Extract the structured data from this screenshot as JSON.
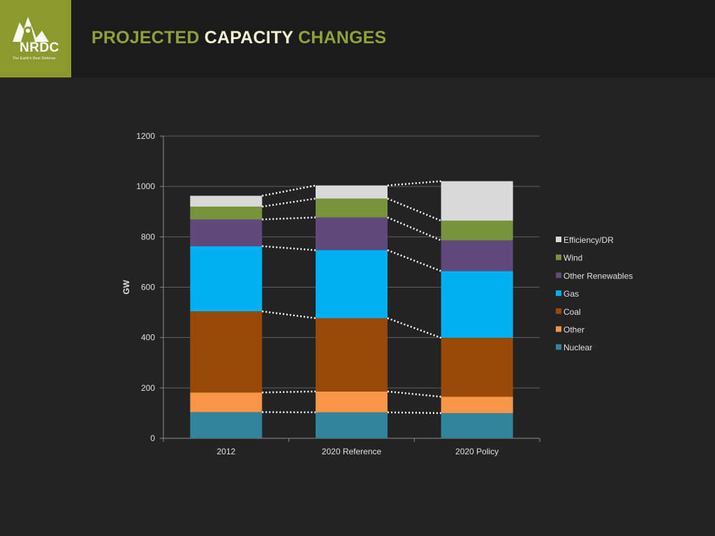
{
  "slide": {
    "logo_text": "NRDC",
    "logo_tagline": "The Earth's Best Defense",
    "title_part1": "PROJECTED ",
    "title_part2": "CAPACITY",
    "title_part3": " CHANGES"
  },
  "colors": {
    "logo_bg": "#8a9a2c",
    "title_green": "#8fa23a",
    "title_highlight": "#f4f1d0"
  },
  "chart_data": {
    "type": "bar",
    "stacked": true,
    "categories": [
      "2012",
      "2020 Reference",
      "2020 Policy"
    ],
    "ylabel": "GW",
    "ylim": [
      0,
      1200
    ],
    "yticks": [
      0,
      200,
      400,
      600,
      800,
      1000,
      1200
    ],
    "grid": true,
    "legend_position": "right",
    "connector_lines": "dotted",
    "series": [
      {
        "name": "Nuclear",
        "color": "#31849b",
        "values": [
          104,
          103,
          100
        ]
      },
      {
        "name": "Other",
        "color": "#f79646",
        "values": [
          78,
          83,
          65
        ]
      },
      {
        "name": "Coal",
        "color": "#984807",
        "values": [
          322,
          291,
          234
        ]
      },
      {
        "name": "Gas",
        "color": "#00b0f0",
        "values": [
          259,
          270,
          265
        ]
      },
      {
        "name": "Other Renewables",
        "color": "#604a7b",
        "values": [
          106,
          130,
          122
        ]
      },
      {
        "name": "Wind",
        "color": "#77933c",
        "values": [
          51,
          75,
          78
        ]
      },
      {
        "name": "Efficiency/DR",
        "color": "#d9d9d9",
        "values": [
          43,
          52,
          157
        ]
      }
    ]
  }
}
